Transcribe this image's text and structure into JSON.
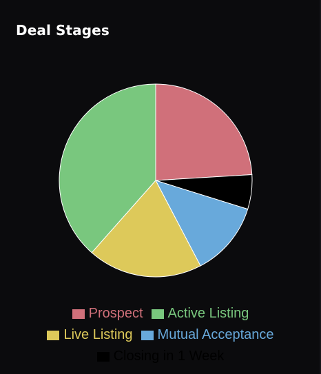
{
  "title": "Deal Stages",
  "chart_data": {
    "type": "pie",
    "title": "Deal Stages",
    "labels": [
      "Prospect",
      "Active Listing",
      "Live Listing",
      "Mutual Acceptance",
      "Closing in 1 Week"
    ],
    "values": [
      25,
      40,
      20,
      13,
      6
    ],
    "colors": [
      "#d0707a",
      "#79c77e",
      "#ddc95a",
      "#68a9db",
      "#000000"
    ],
    "start_angle_deg": 0,
    "slice_order": [
      "Prospect",
      "Closing in 1 Week",
      "Mutual Acceptance",
      "Live Listing",
      "Active Listing"
    ],
    "legend_position": "bottom"
  }
}
